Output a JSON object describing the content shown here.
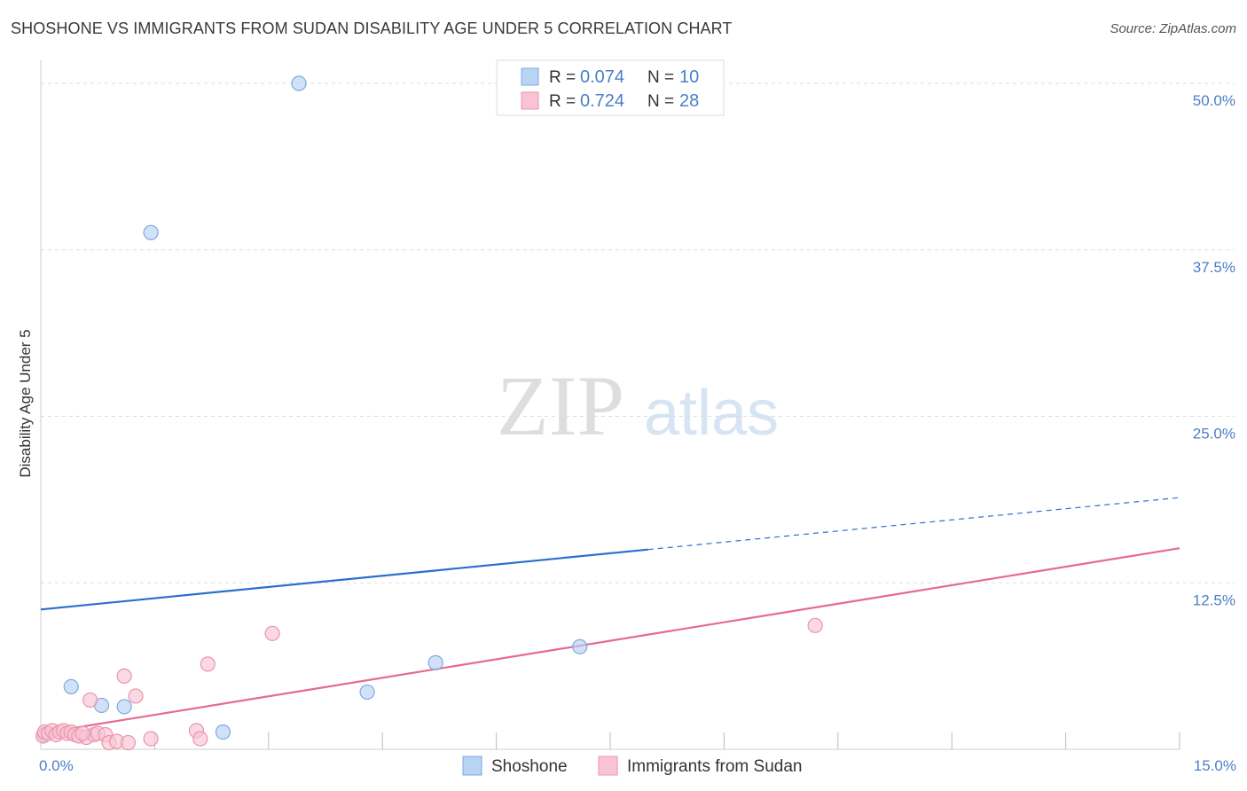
{
  "title": "SHOSHONE VS IMMIGRANTS FROM SUDAN DISABILITY AGE UNDER 5 CORRELATION CHART",
  "source": "Source: ZipAtlas.com",
  "watermark": {
    "zip": "ZIP",
    "atlas": "atlas"
  },
  "colors": {
    "shoshone_fill": "#b9d3f5",
    "shoshone_stroke": "#7ea8e0",
    "shoshone_line": "#2b6fcf",
    "sudan_fill": "#f8c4d3",
    "sudan_stroke": "#ec93ae",
    "sudan_line": "#e56a93",
    "tick_label": "#4a7fc8",
    "grid": "#dddddd",
    "axis": "#cccccc"
  },
  "legend_top": [
    {
      "r_label": "R = ",
      "r_value": "0.074",
      "n_label": "N = ",
      "n_value": "10",
      "series": "shoshone"
    },
    {
      "r_label": "R = ",
      "r_value": "0.724",
      "n_label": "N = ",
      "n_value": "28",
      "series": "sudan"
    }
  ],
  "chart_data": {
    "type": "scatter",
    "title": "SHOSHONE VS IMMIGRANTS FROM SUDAN DISABILITY AGE UNDER 5 CORRELATION CHART",
    "xlabel": "",
    "ylabel": "Disability Age Under 5",
    "xlim": [
      0,
      15
    ],
    "ylim": [
      0,
      51
    ],
    "x_tick_labels": [
      {
        "value": 0,
        "label": "0.0%"
      },
      {
        "value": 15,
        "label": "15.0%"
      }
    ],
    "y_ticks": [
      {
        "value": 12.5,
        "label": "12.5%"
      },
      {
        "value": 25,
        "label": "25.0%"
      },
      {
        "value": 37.5,
        "label": "37.5%"
      },
      {
        "value": 50,
        "label": "50.0%"
      }
    ],
    "x_minor_ticks": [
      1.5,
      3.0,
      4.5,
      6.0,
      7.5,
      9.0,
      10.5,
      12.0,
      13.5,
      15.0
    ],
    "grid": true,
    "legend_position": "bottom",
    "series": [
      {
        "name": "Shoshone",
        "key": "shoshone",
        "points": [
          [
            0.05,
            1.1
          ],
          [
            0.4,
            4.7
          ],
          [
            0.8,
            3.3
          ],
          [
            1.1,
            3.2
          ],
          [
            1.45,
            38.8
          ],
          [
            2.4,
            1.3
          ],
          [
            3.4,
            50.0
          ],
          [
            4.3,
            4.3
          ],
          [
            5.2,
            6.5
          ],
          [
            7.1,
            7.7
          ]
        ],
        "trend": {
          "x0": 0,
          "y0": 10.5,
          "x1": 8.0,
          "y1": 15.0,
          "x_dash_end": 15.0,
          "y_dash_end": 18.9
        }
      },
      {
        "name": "Immigrants from Sudan",
        "key": "sudan",
        "points": [
          [
            0.03,
            1.0
          ],
          [
            0.05,
            1.3
          ],
          [
            0.1,
            1.2
          ],
          [
            0.15,
            1.4
          ],
          [
            0.2,
            1.1
          ],
          [
            0.25,
            1.3
          ],
          [
            0.3,
            1.4
          ],
          [
            0.35,
            1.2
          ],
          [
            0.4,
            1.3
          ],
          [
            0.45,
            1.1
          ],
          [
            0.5,
            1.0
          ],
          [
            0.6,
            0.9
          ],
          [
            0.65,
            3.7
          ],
          [
            0.7,
            1.1
          ],
          [
            0.75,
            1.2
          ],
          [
            0.85,
            1.1
          ],
          [
            0.9,
            0.5
          ],
          [
            1.0,
            0.6
          ],
          [
            1.1,
            5.5
          ],
          [
            1.15,
            0.5
          ],
          [
            1.25,
            4.0
          ],
          [
            1.45,
            0.8
          ],
          [
            2.05,
            1.4
          ],
          [
            2.1,
            0.8
          ],
          [
            2.2,
            6.4
          ],
          [
            3.05,
            8.7
          ],
          [
            10.2,
            9.3
          ],
          [
            0.55,
            1.2
          ]
        ],
        "trend": {
          "x0": 0,
          "y0": 1.2,
          "x1": 15.0,
          "y1": 15.1
        }
      }
    ]
  }
}
